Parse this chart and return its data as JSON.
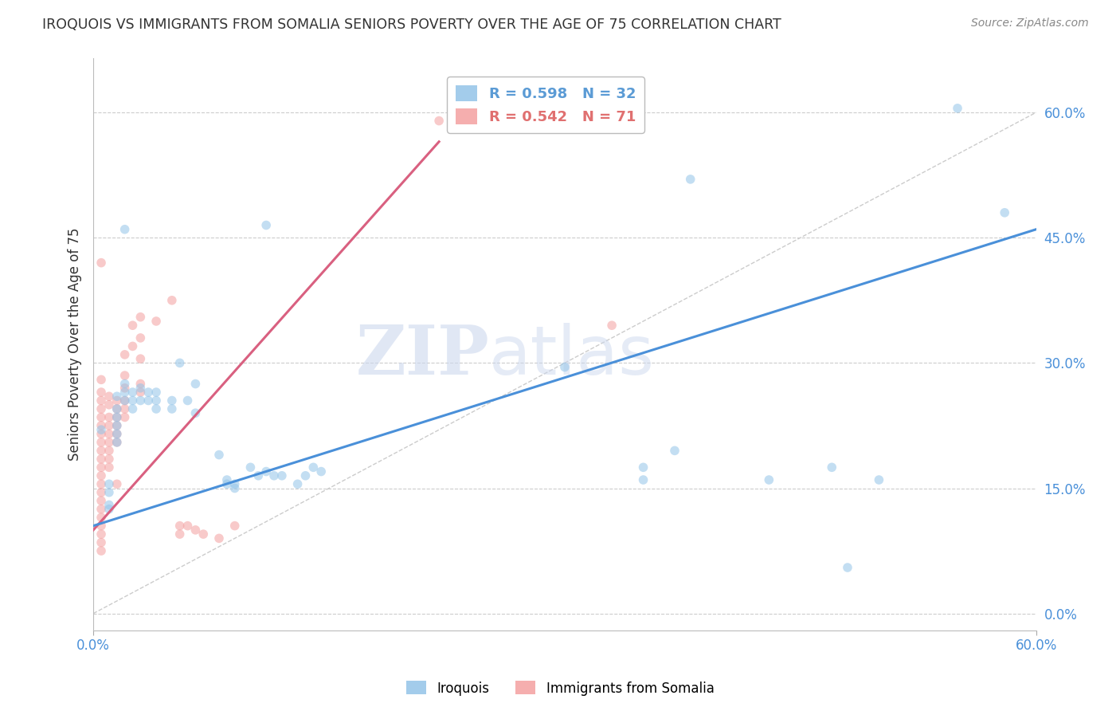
{
  "title": "IROQUOIS VS IMMIGRANTS FROM SOMALIA SENIORS POVERTY OVER THE AGE OF 75 CORRELATION CHART",
  "source": "Source: ZipAtlas.com",
  "ylabel": "Seniors Poverty Over the Age of 75",
  "xmin": 0.0,
  "xmax": 0.6,
  "ymin": -0.02,
  "ymax": 0.665,
  "yticks": [
    0.0,
    0.15,
    0.3,
    0.45,
    0.6
  ],
  "ytick_labels": [
    "0.0%",
    "15.0%",
    "30.0%",
    "45.0%",
    "60.0%"
  ],
  "xtick_labels": [
    "0.0%",
    "60.0%"
  ],
  "xticks": [
    0.0,
    0.6
  ],
  "legend_entries": [
    {
      "label": "R = 0.598   N = 32",
      "color": "#5b9bd5"
    },
    {
      "label": "R = 0.542   N = 71",
      "color": "#e07070"
    }
  ],
  "watermark_zip": "ZIP",
  "watermark_atlas": "atlas",
  "blue_scatter": [
    [
      0.005,
      0.22
    ],
    [
      0.01,
      0.155
    ],
    [
      0.01,
      0.145
    ],
    [
      0.01,
      0.13
    ],
    [
      0.01,
      0.125
    ],
    [
      0.015,
      0.26
    ],
    [
      0.015,
      0.245
    ],
    [
      0.015,
      0.235
    ],
    [
      0.015,
      0.225
    ],
    [
      0.015,
      0.215
    ],
    [
      0.015,
      0.205
    ],
    [
      0.02,
      0.275
    ],
    [
      0.02,
      0.265
    ],
    [
      0.02,
      0.255
    ],
    [
      0.025,
      0.265
    ],
    [
      0.025,
      0.255
    ],
    [
      0.025,
      0.245
    ],
    [
      0.03,
      0.27
    ],
    [
      0.03,
      0.255
    ],
    [
      0.035,
      0.265
    ],
    [
      0.035,
      0.255
    ],
    [
      0.04,
      0.265
    ],
    [
      0.04,
      0.255
    ],
    [
      0.04,
      0.245
    ],
    [
      0.05,
      0.255
    ],
    [
      0.05,
      0.245
    ],
    [
      0.055,
      0.3
    ],
    [
      0.06,
      0.255
    ],
    [
      0.065,
      0.275
    ],
    [
      0.065,
      0.24
    ],
    [
      0.08,
      0.19
    ],
    [
      0.085,
      0.16
    ],
    [
      0.085,
      0.155
    ],
    [
      0.09,
      0.155
    ],
    [
      0.09,
      0.15
    ],
    [
      0.1,
      0.175
    ],
    [
      0.105,
      0.165
    ],
    [
      0.11,
      0.17
    ],
    [
      0.115,
      0.165
    ],
    [
      0.12,
      0.165
    ],
    [
      0.13,
      0.155
    ],
    [
      0.135,
      0.165
    ],
    [
      0.14,
      0.175
    ],
    [
      0.145,
      0.17
    ],
    [
      0.02,
      0.46
    ],
    [
      0.11,
      0.465
    ],
    [
      0.3,
      0.295
    ],
    [
      0.35,
      0.175
    ],
    [
      0.35,
      0.16
    ],
    [
      0.37,
      0.195
    ],
    [
      0.38,
      0.52
    ],
    [
      0.43,
      0.16
    ],
    [
      0.47,
      0.175
    ],
    [
      0.48,
      0.055
    ],
    [
      0.5,
      0.16
    ],
    [
      0.55,
      0.605
    ],
    [
      0.58,
      0.48
    ]
  ],
  "pink_scatter": [
    [
      0.005,
      0.42
    ],
    [
      0.005,
      0.28
    ],
    [
      0.005,
      0.265
    ],
    [
      0.005,
      0.255
    ],
    [
      0.005,
      0.245
    ],
    [
      0.005,
      0.235
    ],
    [
      0.005,
      0.225
    ],
    [
      0.005,
      0.215
    ],
    [
      0.005,
      0.205
    ],
    [
      0.005,
      0.195
    ],
    [
      0.005,
      0.185
    ],
    [
      0.005,
      0.175
    ],
    [
      0.005,
      0.165
    ],
    [
      0.005,
      0.155
    ],
    [
      0.005,
      0.145
    ],
    [
      0.005,
      0.135
    ],
    [
      0.005,
      0.125
    ],
    [
      0.005,
      0.115
    ],
    [
      0.005,
      0.105
    ],
    [
      0.005,
      0.095
    ],
    [
      0.005,
      0.085
    ],
    [
      0.005,
      0.075
    ],
    [
      0.01,
      0.26
    ],
    [
      0.01,
      0.25
    ],
    [
      0.01,
      0.235
    ],
    [
      0.01,
      0.225
    ],
    [
      0.01,
      0.215
    ],
    [
      0.01,
      0.205
    ],
    [
      0.01,
      0.195
    ],
    [
      0.01,
      0.185
    ],
    [
      0.01,
      0.175
    ],
    [
      0.015,
      0.255
    ],
    [
      0.015,
      0.245
    ],
    [
      0.015,
      0.235
    ],
    [
      0.015,
      0.225
    ],
    [
      0.015,
      0.215
    ],
    [
      0.015,
      0.205
    ],
    [
      0.015,
      0.155
    ],
    [
      0.02,
      0.31
    ],
    [
      0.02,
      0.285
    ],
    [
      0.02,
      0.27
    ],
    [
      0.02,
      0.255
    ],
    [
      0.02,
      0.245
    ],
    [
      0.02,
      0.235
    ],
    [
      0.025,
      0.345
    ],
    [
      0.025,
      0.32
    ],
    [
      0.03,
      0.355
    ],
    [
      0.03,
      0.33
    ],
    [
      0.03,
      0.305
    ],
    [
      0.03,
      0.275
    ],
    [
      0.03,
      0.265
    ],
    [
      0.04,
      0.35
    ],
    [
      0.05,
      0.375
    ],
    [
      0.055,
      0.105
    ],
    [
      0.055,
      0.095
    ],
    [
      0.06,
      0.105
    ],
    [
      0.065,
      0.1
    ],
    [
      0.07,
      0.095
    ],
    [
      0.08,
      0.09
    ],
    [
      0.09,
      0.105
    ],
    [
      0.22,
      0.59
    ],
    [
      0.33,
      0.345
    ]
  ],
  "blue_line_x": [
    0.0,
    0.6
  ],
  "blue_line_y": [
    0.105,
    0.46
  ],
  "pink_line_x": [
    0.0,
    0.22
  ],
  "pink_line_y": [
    0.1,
    0.565
  ],
  "ref_line_x": [
    0.0,
    0.6
  ],
  "ref_line_y": [
    0.0,
    0.6
  ],
  "blue_color": "#93c4e8",
  "pink_color": "#f4a0a0",
  "blue_line_color": "#4a90d9",
  "pink_line_color": "#d96080",
  "ref_line_color": "#cccccc",
  "bg_color": "#ffffff",
  "grid_color": "#cccccc",
  "axis_label_color": "#4a90d9",
  "title_color": "#333333",
  "marker_size": 70,
  "marker_alpha": 0.55
}
